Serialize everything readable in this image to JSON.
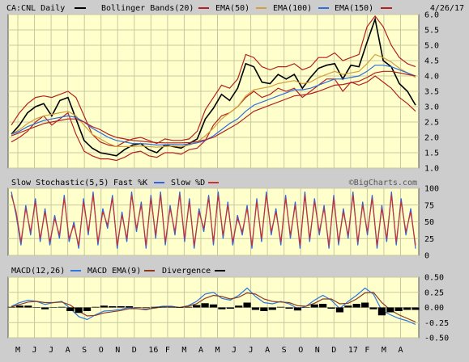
{
  "header": {
    "symbol": "CA:CNL Daily",
    "bollinger": "Bollinger Bands(20)",
    "ema50": "EMA(50)",
    "ema100": "EMA(100)",
    "ema150": "EMA(150)",
    "date": "4/26/17"
  },
  "stoch_header": {
    "title": "Slow Stochastic(5,5)",
    "fast": "Fast %K",
    "slow": "Slow %D",
    "credit": "©BigCharts.com"
  },
  "macd_header": {
    "title": "MACD(12,26)",
    "ema": "MACD EMA(9)",
    "divergence": "Divergence"
  },
  "colors": {
    "background": "#cdcdcd",
    "panel": "#ffffcc",
    "grid": "#c8c8a0",
    "price": "#000000",
    "bollinger": "#b22222",
    "ema50": "#d2a03c",
    "ema100": "#2d6edc",
    "ema150": "#b22222",
    "fast_k": "#3264dc",
    "slow_d": "#c83232",
    "macd": "#2d78dc",
    "macd_ema": "#8b3a1e",
    "divergence": "#000000"
  },
  "chart_data": [
    {
      "type": "line",
      "panel": "price",
      "title": "CA:CNL Daily",
      "x_ticks": [
        "M",
        "J",
        "J",
        "A",
        "S",
        "O",
        "N",
        "D",
        "16",
        "F",
        "M",
        "A",
        "M",
        "J",
        "J",
        "A",
        "S",
        "O",
        "N",
        "D",
        "17",
        "F",
        "M",
        "A"
      ],
      "y_ticks": [
        "6.0",
        "5.5",
        "5.0",
        "4.5",
        "4.0",
        "3.5",
        "3.0",
        "2.5",
        "2.0",
        "1.5",
        "1.0"
      ],
      "ylim": [
        1.0,
        6.0
      ],
      "series": [
        {
          "name": "CA:CNL Daily",
          "values": [
            2.1,
            2.4,
            2.8,
            3.0,
            3.1,
            2.7,
            3.2,
            3.3,
            2.6,
            1.9,
            1.65,
            1.5,
            1.45,
            1.4,
            1.6,
            1.75,
            1.8,
            1.6,
            1.5,
            1.75,
            1.7,
            1.65,
            1.8,
            1.95,
            2.6,
            2.95,
            3.4,
            3.2,
            3.6,
            4.4,
            4.3,
            3.8,
            3.75,
            4.05,
            3.9,
            4.05,
            3.6,
            3.95,
            4.25,
            4.35,
            4.4,
            3.9,
            4.35,
            4.3,
            5.1,
            5.85,
            4.5,
            4.3,
            3.75,
            3.5,
            3.05
          ]
        },
        {
          "name": "Bollinger Bands(20)",
          "role": "upper",
          "values": [
            2.4,
            2.8,
            3.1,
            3.3,
            3.35,
            3.3,
            3.4,
            3.5,
            3.3,
            2.7,
            2.1,
            1.85,
            1.75,
            1.7,
            1.85,
            1.95,
            2.0,
            1.9,
            1.8,
            1.95,
            1.9,
            1.9,
            1.95,
            2.2,
            2.9,
            3.3,
            3.7,
            3.6,
            3.9,
            4.7,
            4.6,
            4.3,
            4.2,
            4.3,
            4.3,
            4.4,
            4.2,
            4.3,
            4.6,
            4.6,
            4.75,
            4.5,
            4.6,
            4.7,
            5.6,
            5.95,
            5.6,
            5.0,
            4.6,
            4.4,
            4.3
          ]
        },
        {
          "name": "Bollinger Bands(20)",
          "role": "lower",
          "values": [
            1.85,
            2.0,
            2.2,
            2.5,
            2.7,
            2.4,
            2.6,
            2.8,
            2.1,
            1.55,
            1.4,
            1.3,
            1.3,
            1.25,
            1.35,
            1.5,
            1.55,
            1.4,
            1.35,
            1.5,
            1.5,
            1.45,
            1.6,
            1.65,
            1.9,
            2.4,
            2.7,
            2.8,
            3.0,
            3.3,
            3.5,
            3.3,
            3.4,
            3.6,
            3.5,
            3.6,
            3.3,
            3.5,
            3.7,
            3.9,
            3.9,
            3.5,
            3.8,
            3.7,
            3.8,
            4.0,
            3.8,
            3.6,
            3.3,
            3.1,
            2.85
          ]
        },
        {
          "name": "EMA(50)",
          "values": [
            2.1,
            2.25,
            2.45,
            2.6,
            2.7,
            2.75,
            2.8,
            2.85,
            2.7,
            2.4,
            2.1,
            1.95,
            1.8,
            1.7,
            1.7,
            1.7,
            1.72,
            1.7,
            1.68,
            1.7,
            1.72,
            1.7,
            1.75,
            1.85,
            2.05,
            2.3,
            2.6,
            2.8,
            3.0,
            3.35,
            3.55,
            3.6,
            3.65,
            3.75,
            3.8,
            3.85,
            3.75,
            3.8,
            3.95,
            4.05,
            4.15,
            4.05,
            4.1,
            4.15,
            4.4,
            4.7,
            4.6,
            4.45,
            4.25,
            4.1,
            3.95
          ]
        },
        {
          "name": "EMA(100)",
          "values": [
            2.1,
            2.2,
            2.35,
            2.45,
            2.55,
            2.6,
            2.65,
            2.7,
            2.65,
            2.5,
            2.3,
            2.15,
            2.0,
            1.9,
            1.85,
            1.8,
            1.8,
            1.78,
            1.75,
            1.76,
            1.77,
            1.76,
            1.78,
            1.82,
            1.9,
            2.05,
            2.25,
            2.45,
            2.6,
            2.85,
            3.05,
            3.15,
            3.25,
            3.35,
            3.45,
            3.55,
            3.55,
            3.6,
            3.7,
            3.8,
            3.9,
            3.9,
            3.95,
            4.0,
            4.15,
            4.35,
            4.35,
            4.3,
            4.2,
            4.1,
            4.0
          ]
        },
        {
          "name": "EMA(150)",
          "values": [
            2.05,
            2.15,
            2.25,
            2.35,
            2.45,
            2.5,
            2.55,
            2.6,
            2.6,
            2.5,
            2.35,
            2.25,
            2.1,
            2.0,
            1.95,
            1.9,
            1.88,
            1.85,
            1.83,
            1.82,
            1.82,
            1.82,
            1.83,
            1.86,
            1.92,
            2.0,
            2.15,
            2.3,
            2.45,
            2.65,
            2.85,
            2.95,
            3.05,
            3.15,
            3.25,
            3.35,
            3.38,
            3.42,
            3.5,
            3.6,
            3.7,
            3.72,
            3.78,
            3.83,
            3.95,
            4.1,
            4.15,
            4.15,
            4.1,
            4.05,
            4.0
          ]
        }
      ]
    },
    {
      "type": "line",
      "panel": "stochastic",
      "title": "Slow Stochastic(5,5)",
      "y_ticks": [
        "100",
        "75",
        "50",
        "25",
        "0"
      ],
      "ylim": [
        0,
        100
      ],
      "series": [
        {
          "name": "Fast %K",
          "values": [
            95,
            60,
            15,
            75,
            30,
            85,
            20,
            70,
            15,
            60,
            25,
            90,
            20,
            50,
            10,
            85,
            30,
            95,
            15,
            70,
            40,
            90,
            10,
            65,
            20,
            95,
            35,
            80,
            10,
            90,
            25,
            95,
            15,
            75,
            30,
            95,
            20,
            85,
            10,
            70,
            35,
            90,
            15,
            95,
            25,
            80,
            15,
            60,
            30,
            75,
            10,
            85,
            20,
            95,
            30,
            70,
            15,
            90,
            25,
            80,
            10,
            95,
            20,
            85,
            30,
            75,
            10,
            90,
            15,
            70,
            25,
            95,
            15,
            80,
            30,
            90,
            10,
            75,
            20,
            95,
            15,
            85,
            30,
            70,
            10
          ]
        },
        {
          "name": "Slow %D",
          "values": [
            90,
            65,
            20,
            70,
            35,
            80,
            25,
            65,
            20,
            55,
            30,
            85,
            25,
            45,
            15,
            80,
            35,
            90,
            20,
            65,
            45,
            85,
            15,
            60,
            25,
            90,
            40,
            75,
            15,
            85,
            30,
            90,
            20,
            70,
            35,
            90,
            25,
            80,
            15,
            65,
            40,
            85,
            20,
            90,
            30,
            75,
            20,
            55,
            35,
            70,
            15,
            80,
            25,
            90,
            35,
            65,
            20,
            85,
            30,
            75,
            15,
            90,
            25,
            80,
            35,
            70,
            15,
            85,
            20,
            65,
            30,
            90,
            20,
            75,
            35,
            85,
            15,
            70,
            25,
            90,
            20,
            80,
            35,
            65,
            15
          ]
        }
      ]
    },
    {
      "type": "line",
      "panel": "macd",
      "title": "MACD(12,26)",
      "y_ticks": [
        "0.50",
        "0.25",
        "0.00",
        "-0.25",
        "-0.50"
      ],
      "ylim": [
        -0.5,
        0.5
      ],
      "series": [
        {
          "name": "MACD(12,26)",
          "values": [
            0.02,
            0.08,
            0.12,
            0.1,
            0.05,
            0.08,
            0.1,
            -0.02,
            -0.15,
            -0.2,
            -0.12,
            -0.06,
            -0.05,
            -0.03,
            0.0,
            -0.02,
            -0.04,
            0.0,
            0.02,
            0.02,
            0.0,
            0.03,
            0.1,
            0.22,
            0.25,
            0.15,
            0.12,
            0.2,
            0.32,
            0.18,
            0.08,
            0.06,
            0.1,
            0.06,
            -0.02,
            0.02,
            0.12,
            0.2,
            0.12,
            -0.02,
            0.1,
            0.2,
            0.32,
            0.22,
            -0.05,
            -0.12,
            -0.18,
            -0.22,
            -0.28
          ]
        },
        {
          "name": "MACD EMA(9)",
          "values": [
            0.01,
            0.05,
            0.09,
            0.1,
            0.08,
            0.08,
            0.09,
            0.04,
            -0.06,
            -0.14,
            -0.13,
            -0.09,
            -0.07,
            -0.05,
            -0.02,
            -0.02,
            -0.03,
            -0.01,
            0.01,
            0.01,
            0.0,
            0.02,
            0.06,
            0.15,
            0.2,
            0.18,
            0.14,
            0.17,
            0.24,
            0.22,
            0.14,
            0.1,
            0.09,
            0.08,
            0.03,
            0.02,
            0.07,
            0.14,
            0.14,
            0.06,
            0.07,
            0.14,
            0.24,
            0.25,
            0.08,
            -0.04,
            -0.12,
            -0.18,
            -0.24
          ]
        },
        {
          "name": "Divergence",
          "values": [
            0.01,
            0.03,
            0.03,
            0.0,
            -0.03,
            0.0,
            0.01,
            -0.06,
            -0.09,
            -0.06,
            0.01,
            0.03,
            0.02,
            0.02,
            0.02,
            0.0,
            -0.01,
            0.01,
            0.01,
            0.01,
            0.0,
            0.01,
            0.04,
            0.07,
            0.05,
            -0.03,
            -0.02,
            0.03,
            0.08,
            -0.04,
            -0.06,
            -0.04,
            0.01,
            -0.02,
            -0.05,
            0.0,
            0.05,
            0.06,
            -0.02,
            -0.08,
            0.03,
            0.06,
            0.08,
            -0.03,
            -0.13,
            -0.08,
            -0.06,
            -0.04,
            -0.04
          ]
        }
      ]
    }
  ]
}
